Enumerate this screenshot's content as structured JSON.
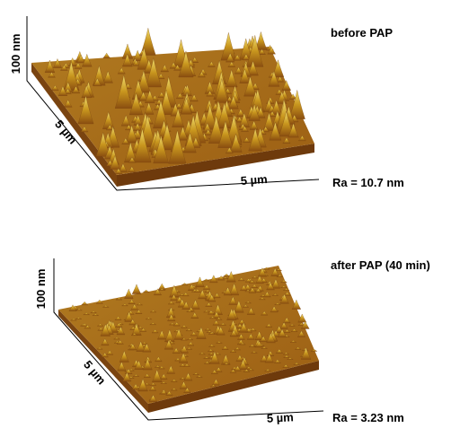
{
  "panels": [
    {
      "title": "before PAP",
      "z_axis": "100 nm",
      "y_axis": "5 µm",
      "x_axis": "5 µm",
      "roughness": "Ra = 10.7 nm"
    },
    {
      "title": "after PAP (40 min)",
      "z_axis": "100 nm",
      "y_axis": "5 µm",
      "x_axis": "5 µm",
      "roughness": "Ra = 3.23 nm"
    }
  ]
}
